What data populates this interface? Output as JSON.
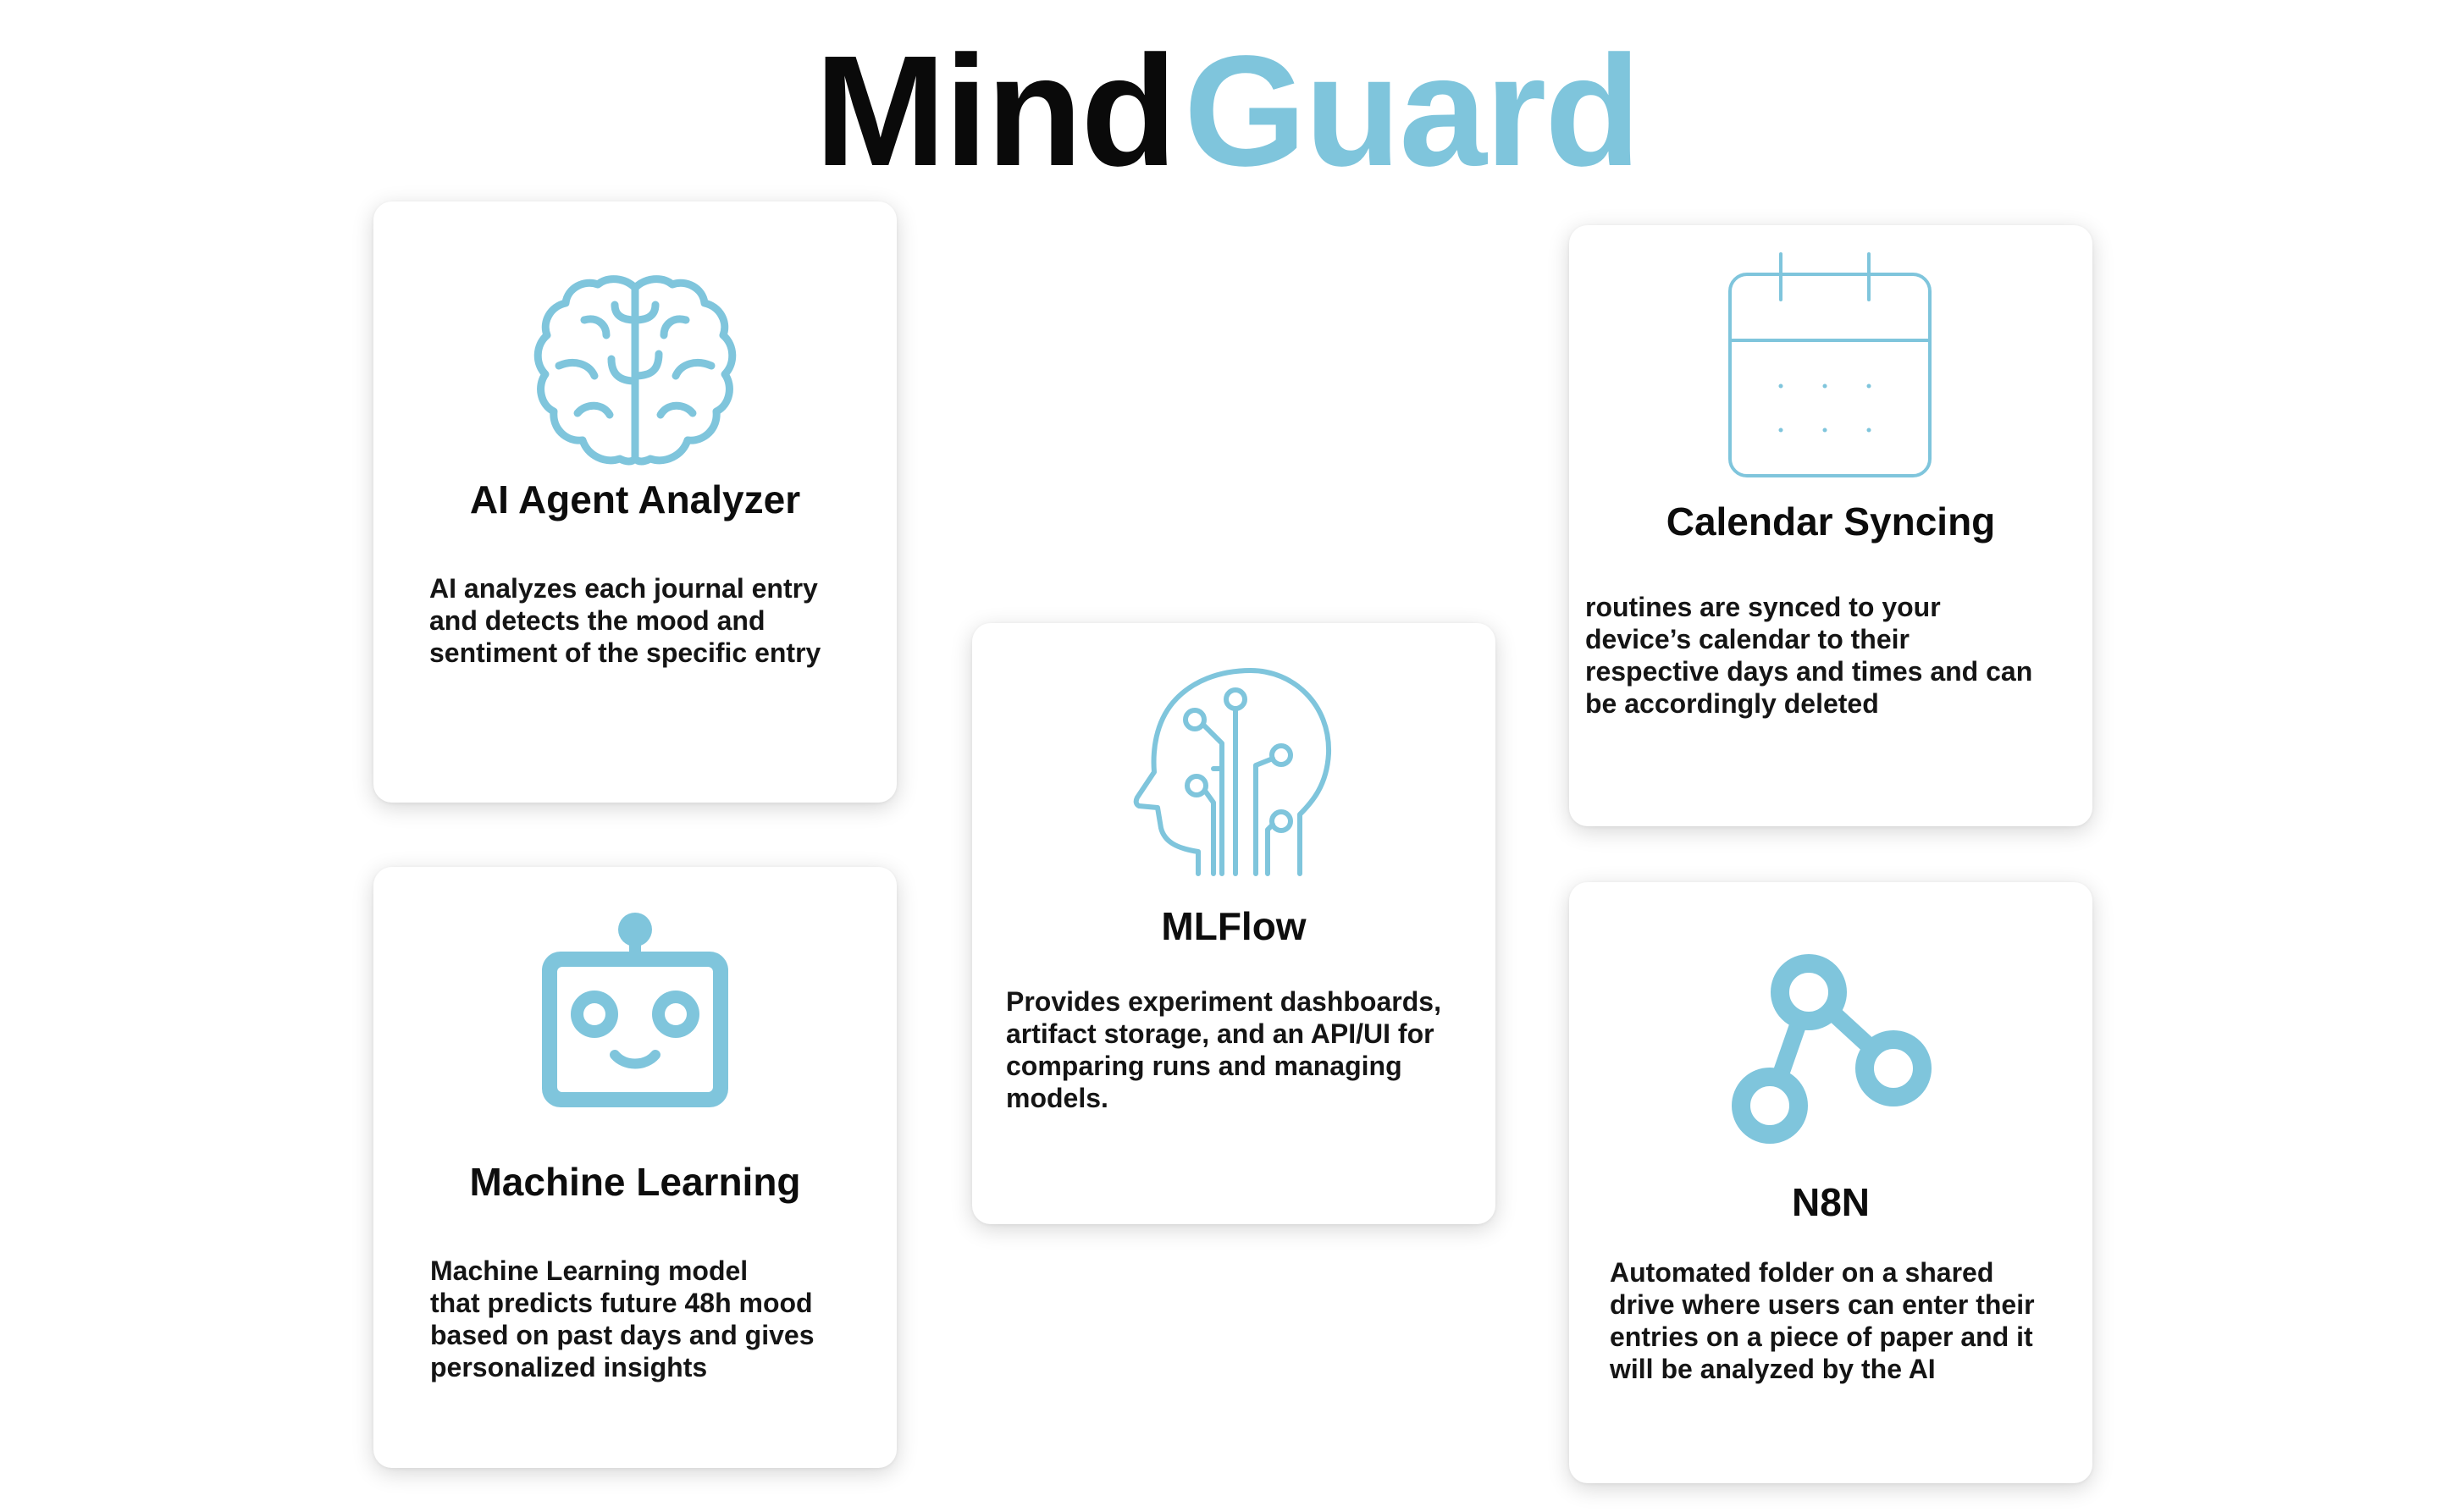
{
  "title": {
    "part1": "Mind",
    "part2": "Guard"
  },
  "colors": {
    "accent": "#7fc5dc",
    "text": "#111111",
    "card_background": "#ffffff"
  },
  "cards": [
    {
      "icon": "brain-icon",
      "heading": "AI Agent Analyzer",
      "description": "AI analyzes each journal entry\nand detects the mood and\nsentiment of the specific entry"
    },
    {
      "icon": "robot-icon",
      "heading": "Machine Learning",
      "description": "Machine Learning model\nthat predicts future 48h mood\nbased on past days and gives\npersonalized insights"
    },
    {
      "icon": "ai-head-icon",
      "heading": "MLFlow",
      "description": "Provides experiment dashboards,\nartifact storage, and an API/UI for\ncomparing runs and managing\nmodels."
    },
    {
      "icon": "calendar-icon",
      "heading": "Calendar Syncing",
      "description": "routines are synced to your\ndevice’s calendar to their\nrespective days and times and can\n be accordingly deleted"
    },
    {
      "icon": "workflow-nodes-icon",
      "heading": "N8N",
      "description": "Automated folder on a shared\ndrive where users can enter their\nentries on a piece of paper and it\nwill be analyzed by the AI"
    }
  ]
}
